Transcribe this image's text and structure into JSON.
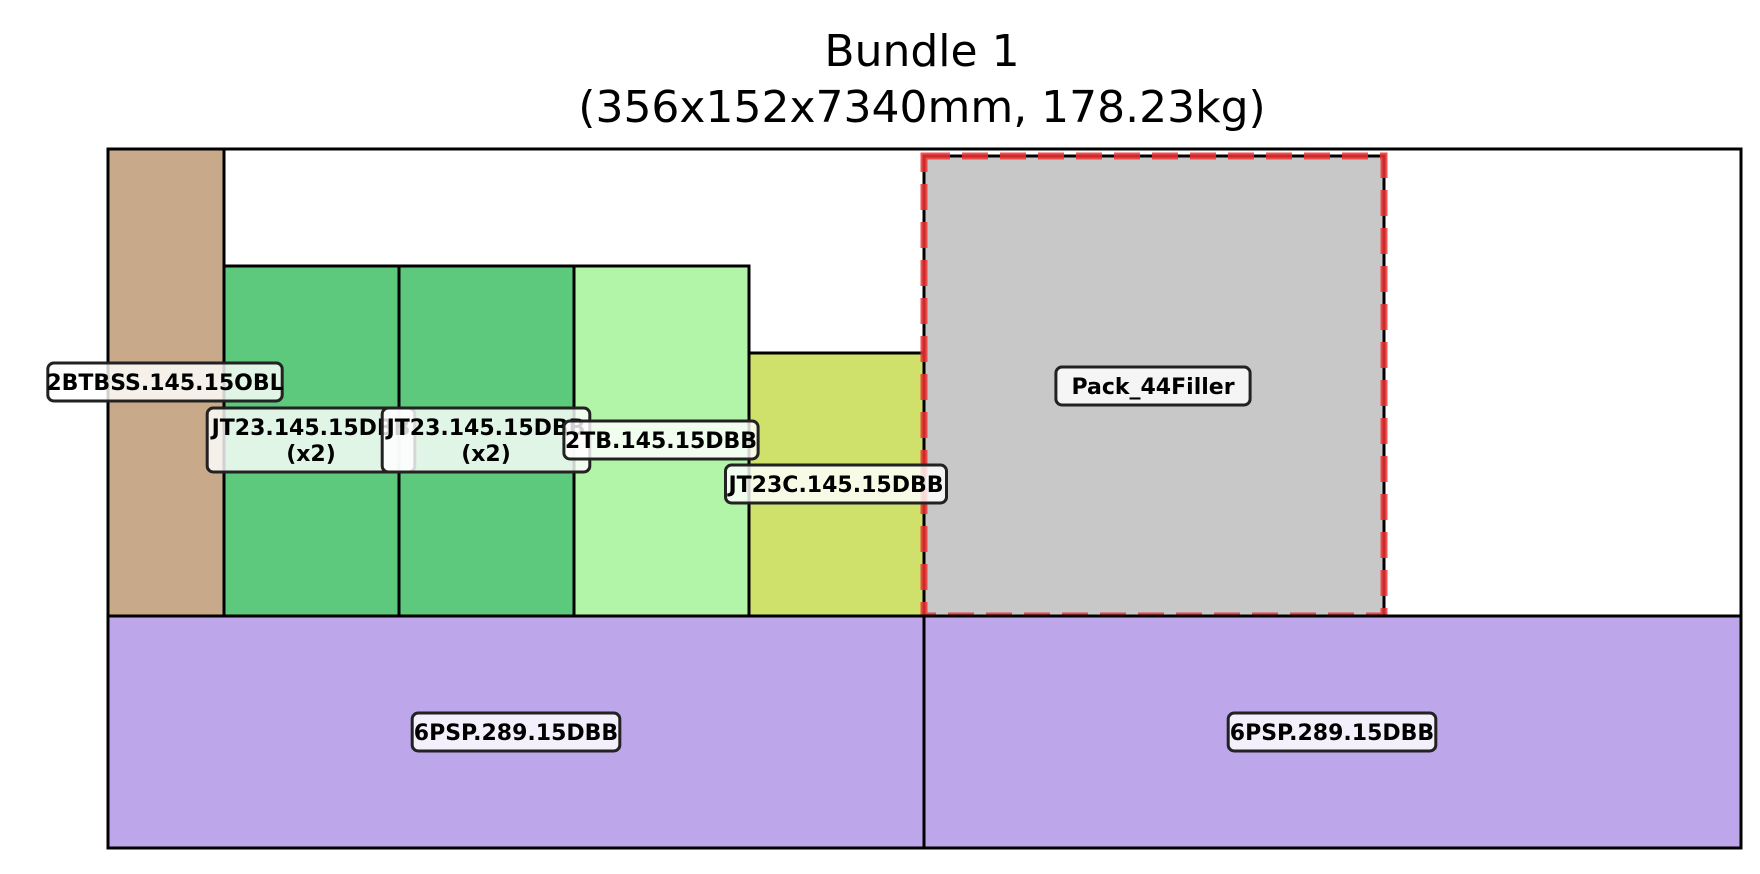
{
  "title": "Bundle 1",
  "subtitle": "(356x152x7340mm, 178.23kg)",
  "colors": {
    "tan": "#c8a98a",
    "green_mid": "#5cc97c",
    "green_light": "#b3f5a8",
    "yellow_green": "#cfe06b",
    "filler_gray": "#c8c8c8",
    "purple": "#bda6ea",
    "highlight_red": "#ee3333"
  },
  "pieces": [
    {
      "id": "2btbss",
      "name": "2BTBSS.145.15OBL",
      "multiplier": "",
      "color": "tan"
    },
    {
      "id": "jt23-a",
      "name": "JT23.145.15DBB",
      "multiplier": "(x2)",
      "color": "green_mid"
    },
    {
      "id": "jt23-b",
      "name": "JT23.145.15DBB",
      "multiplier": "(x2)",
      "color": "green_mid"
    },
    {
      "id": "2tb",
      "name": "2TB.145.15DBB",
      "multiplier": "",
      "color": "green_light"
    },
    {
      "id": "jt23c",
      "name": "JT23C.145.15DBB",
      "multiplier": "",
      "color": "yellow_green"
    },
    {
      "id": "filler",
      "name": "Pack_44Filler",
      "multiplier": "",
      "color": "filler_gray",
      "highlighted": true
    },
    {
      "id": "6psp-a",
      "name": "6PSP.289.15DBB",
      "multiplier": "",
      "color": "purple"
    },
    {
      "id": "6psp-b",
      "name": "6PSP.289.15DBB",
      "multiplier": "",
      "color": "purple"
    }
  ]
}
